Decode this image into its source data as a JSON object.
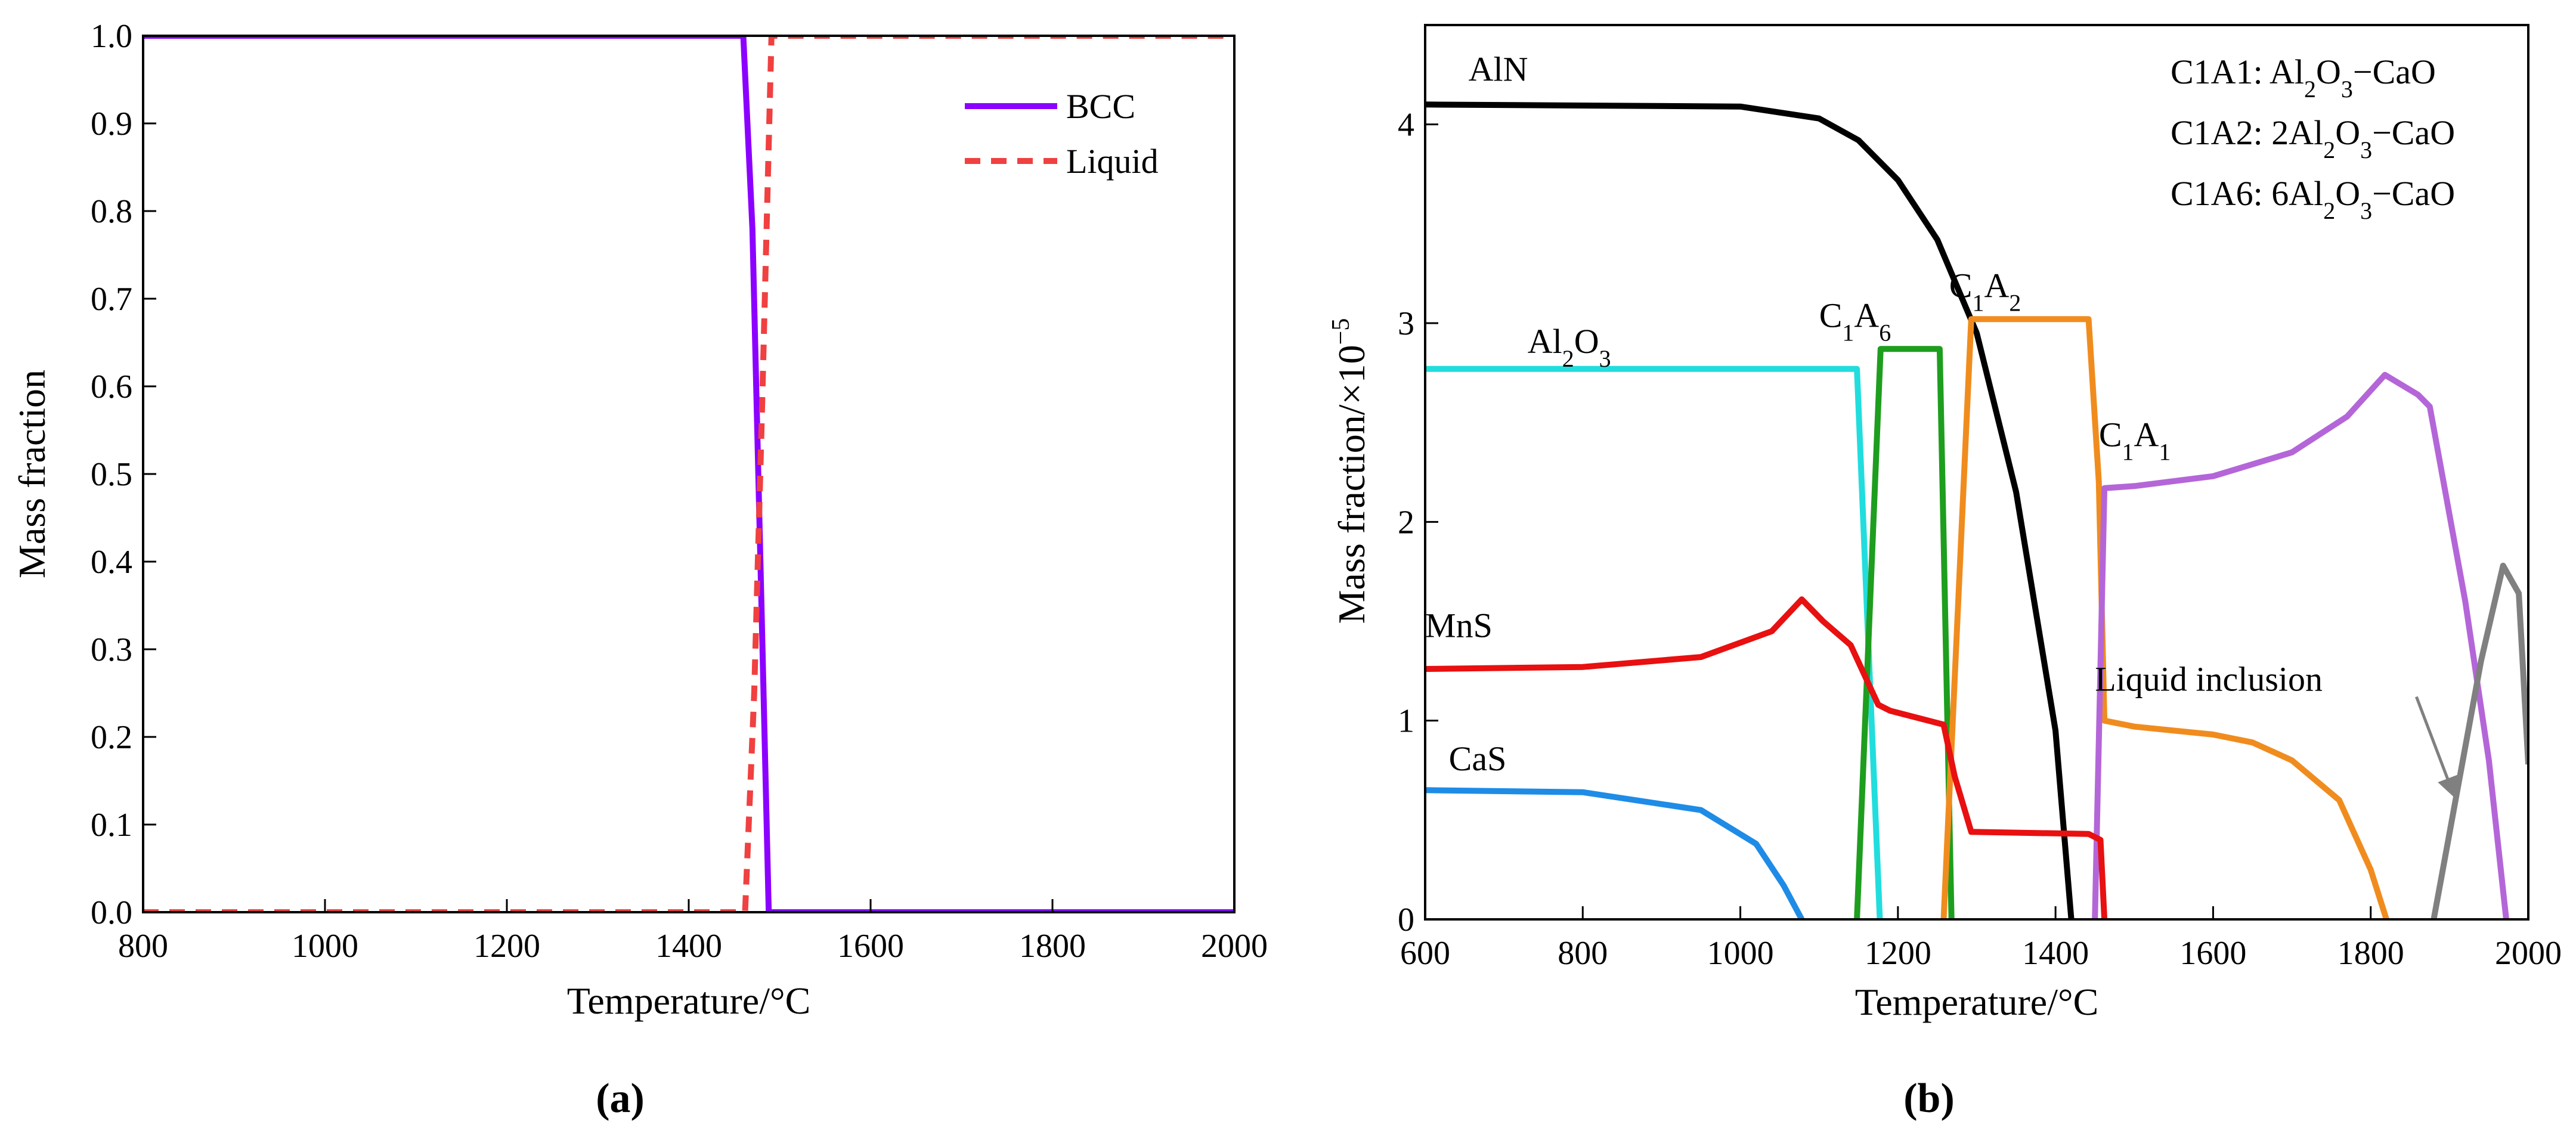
{
  "chart_data": [
    {
      "type": "line",
      "panel_label": "(a)",
      "panel_letter": "a",
      "xlabel": "Temperature/°C",
      "ylabel": "Mass fraction",
      "xlim": [
        800,
        2000
      ],
      "ylim": [
        0,
        1.0
      ],
      "xticks": [
        800,
        1000,
        1200,
        1400,
        1600,
        1800,
        2000
      ],
      "yticks": [
        0,
        0.1,
        0.2,
        0.3,
        0.4,
        0.5,
        0.6,
        0.7,
        0.8,
        0.9,
        1.0
      ],
      "ytick_decimals": 1,
      "legend_position": "top-right",
      "series": [
        {
          "name": "BCC",
          "color": "#8B00FF",
          "style": "solid",
          "x": [
            800,
            1460,
            1470,
            1480,
            1488,
            2000
          ],
          "y": [
            1.0,
            1.0,
            0.78,
            0.35,
            0.0,
            0.0
          ]
        },
        {
          "name": "Liquid",
          "color": "#F04040",
          "style": "dashed",
          "x": [
            800,
            1462,
            1472,
            1480,
            1491,
            2000
          ],
          "y": [
            0.0,
            0.0,
            0.25,
            0.55,
            1.0,
            1.0
          ]
        }
      ]
    },
    {
      "type": "line",
      "panel_label": "(b)",
      "panel_letter": "b",
      "xlabel": "Temperature/°C",
      "ylabel_text": "Mass fraction/×10",
      "ylabel_exp": "−5",
      "xlim": [
        600,
        2000
      ],
      "ylim": [
        0,
        4.5
      ],
      "xticks": [
        600,
        800,
        1000,
        1200,
        1400,
        1600,
        1800,
        2000
      ],
      "yticks": [
        0,
        1,
        2,
        3,
        4
      ],
      "ytick_decimals": 0,
      "legend_lines": [
        {
          "prefix": "C1A1: ",
          "formula": "Al2O3−CaO"
        },
        {
          "prefix": "C1A2: ",
          "formula": "2Al2O3−CaO"
        },
        {
          "prefix": "C1A6: ",
          "formula": "6Al2O3−CaO"
        }
      ],
      "annotations": [
        {
          "text": "AlN",
          "color": "#000000",
          "at": [
            655,
            4.22
          ]
        },
        {
          "text": "Al2O3",
          "color": "#22DDDD",
          "at": [
            730,
            2.85
          ]
        },
        {
          "text": "C1A6",
          "color": "#1E9E1E",
          "at": [
            1100,
            2.98
          ]
        },
        {
          "text": "C1A2",
          "color": "#F08C1E",
          "at": [
            1265,
            3.13
          ]
        },
        {
          "text": "C1A1",
          "color": "#B466D8",
          "at": [
            1455,
            2.38
          ]
        },
        {
          "text": "MnS",
          "color": "#E81010",
          "at": [
            600,
            1.42
          ]
        },
        {
          "text": "CaS",
          "color": "#1E8CE6",
          "at": [
            630,
            0.75
          ]
        },
        {
          "text": "Liquid inclusion",
          "color": "#808080",
          "at": [
            1450,
            1.15
          ]
        }
      ],
      "arrow": {
        "color": "#808080",
        "from": [
          1858,
          1.12
        ],
        "to": [
          1905,
          0.63
        ]
      },
      "series": [
        {
          "name": "AlN",
          "color": "#000000",
          "x": [
            600,
            1000,
            1100,
            1150,
            1200,
            1250,
            1300,
            1350,
            1400,
            1420
          ],
          "y": [
            4.1,
            4.09,
            4.03,
            3.92,
            3.72,
            3.42,
            2.95,
            2.15,
            0.95,
            0
          ]
        },
        {
          "name": "Al2O3",
          "color": "#22DDDD",
          "x": [
            600,
            1148,
            1177
          ],
          "y": [
            2.77,
            2.77,
            0
          ]
        },
        {
          "name": "C1A6",
          "color": "#1E9E1E",
          "x": [
            1148,
            1178,
            1253,
            1268
          ],
          "y": [
            0,
            2.87,
            2.87,
            0
          ]
        },
        {
          "name": "C1A2",
          "color": "#F08C1E",
          "x": [
            1258,
            1293,
            1442,
            1455,
            1462,
            1500,
            1600,
            1650,
            1700,
            1760,
            1800,
            1820
          ],
          "y": [
            0,
            3.02,
            3.02,
            2.2,
            1.0,
            0.97,
            0.93,
            0.89,
            0.8,
            0.6,
            0.25,
            0
          ]
        },
        {
          "name": "C1A1",
          "color": "#B466D8",
          "x": [
            1450,
            1462,
            1500,
            1600,
            1700,
            1770,
            1818,
            1860,
            1875,
            1920,
            1950,
            1972
          ],
          "y": [
            0,
            2.17,
            2.18,
            2.23,
            2.35,
            2.53,
            2.74,
            2.64,
            2.58,
            1.6,
            0.8,
            0
          ]
        },
        {
          "name": "MnS",
          "color": "#E81010",
          "x": [
            600,
            800,
            950,
            1040,
            1078,
            1105,
            1140,
            1175,
            1190,
            1258,
            1272,
            1293,
            1442,
            1457,
            1462
          ],
          "y": [
            1.26,
            1.27,
            1.32,
            1.45,
            1.61,
            1.5,
            1.38,
            1.08,
            1.05,
            0.98,
            0.72,
            0.44,
            0.43,
            0.4,
            0
          ]
        },
        {
          "name": "CaS",
          "color": "#1E8CE6",
          "x": [
            600,
            800,
            950,
            1020,
            1055,
            1078
          ],
          "y": [
            0.65,
            0.64,
            0.55,
            0.38,
            0.17,
            0
          ]
        },
        {
          "name": "Liquid inclusion",
          "color": "#808080",
          "x": [
            1880,
            1940,
            1968,
            1988,
            2000
          ],
          "y": [
            0,
            1.3,
            1.78,
            1.64,
            0.78
          ]
        }
      ]
    }
  ]
}
